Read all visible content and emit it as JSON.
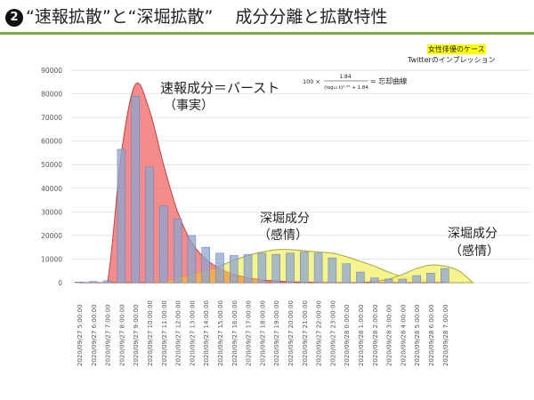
{
  "header": {
    "bullet": "2",
    "title": "“速報拡散”と“深堀拡散”　 成分分離と拡散特性"
  },
  "legend_box": {
    "case_label": "女性俳優のケース",
    "subtitle": "Twitterのインプレッション"
  },
  "annotations": {
    "burst_line1": "速報成分＝バースト",
    "burst_line2": "（事実）",
    "deep1_line1": "深堀成分",
    "deep1_line2": "（感情）",
    "deep2_line1": "深堀成分",
    "deep2_line2": "（感情）",
    "formula_prefix": "100 ×",
    "formula_numerator": "1.84",
    "formula_denominator": "(log₁₀ t)¹·²⁵ + 1.84",
    "formula_suffix": "= 忘却曲線"
  },
  "colors": {
    "bar_fill": "#8ea6cf",
    "bar_stroke": "#5e7fb5",
    "burst_fill": "#f07070",
    "burst_stroke": "#c94040",
    "deep_fill": "#f4f27a",
    "deep_stroke": "#a8a53a",
    "overlap_fill": "#f3b24a",
    "title_rule": "#7aa83c"
  },
  "chart_data": {
    "type": "bar",
    "ylim": [
      0,
      90000
    ],
    "yticks": [
      "0",
      "10000",
      "20000",
      "30000",
      "40000",
      "50000",
      "60000",
      "70000",
      "80000",
      "90000"
    ],
    "categories": [
      "2020/09/27 5:00:00",
      "2020/09/27 6:00:00",
      "2020/09/27 7:00:00",
      "2020/09/27 8:00:00",
      "2020/09/27 9:00:00",
      "2020/09/27 10:00:00",
      "2020/09/27 11:00:00",
      "2020/09/27 12:00:00",
      "2020/09/27 13:00:00",
      "2020/09/27 14:00:00",
      "2020/09/27 15:00:00",
      "2020/09/27 16:00:00",
      "2020/09/27 17:00:00",
      "2020/09/27 18:00:00",
      "2020/09/27 19:00:00",
      "2020/09/27 20:00:00",
      "2020/09/27 21:00:00",
      "2020/09/27 22:00:00",
      "2020/09/27 23:00:00",
      "2020/09/28 0:00:00",
      "2020/09/28 1:00:00",
      "2020/09/28 2:00:00",
      "2020/09/28 3:00:00",
      "2020/09/28 4:00:00",
      "2020/09/28 5:00:00",
      "2020/09/28 6:00:00",
      "2020/09/28 7:00:00"
    ],
    "values": [
      300,
      500,
      800,
      56500,
      79000,
      49000,
      32500,
      27000,
      20000,
      15000,
      12500,
      11500,
      12000,
      12500,
      12000,
      12500,
      13000,
      12500,
      10500,
      8000,
      4500,
      2000,
      1500,
      1500,
      3000,
      4000,
      6000
    ],
    "burst_curve": [
      0,
      0,
      0,
      55000,
      84000,
      73000,
      50000,
      30000,
      17000,
      10000,
      6000,
      3500,
      2000,
      1200,
      700,
      400,
      200,
      100,
      0,
      0,
      0,
      0,
      0,
      0,
      0,
      0,
      0
    ],
    "deep_curve_1": [
      0,
      0,
      0,
      0,
      500,
      2000,
      3500,
      5000,
      7000,
      9500,
      11500,
      13000,
      14000,
      14000,
      13500,
      13000,
      12500,
      11000,
      9000,
      7000,
      4500,
      2500,
      1500,
      500,
      0
    ],
    "deep_curve_2": [
      0,
      500,
      1500,
      3500,
      6000,
      7500,
      7000,
      5000,
      0
    ]
  }
}
